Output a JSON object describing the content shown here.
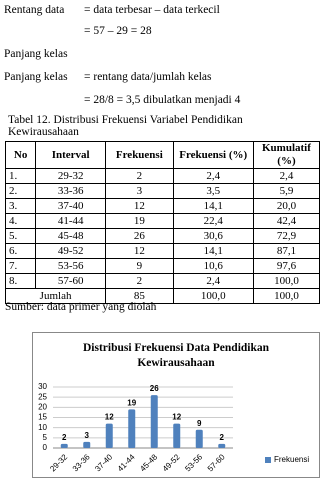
{
  "text": {
    "rentang_label": "Rentang data",
    "rentang_def": "= data terbesar – data terkecil",
    "rentang_calc": "= 57 – 29 = 28",
    "panjang_heading": "Panjang kelas",
    "panjang_label": "Panjang kelas",
    "panjang_def": "= rentang data/jumlah kelas",
    "panjang_calc": "= 28/8 = 3,5 dibulatkan menjadi 4"
  },
  "table": {
    "caption": "Tabel 12. Distribusi Frekuensi Variabel Pendidikan Kewirausahaan",
    "headers": [
      "No",
      "Interval",
      "Frekuensi",
      "Frekuensi (%)",
      "Kumulatif (%)"
    ],
    "rows": [
      [
        "1.",
        "29-32",
        "2",
        "2,4",
        "2,4"
      ],
      [
        "2.",
        "33-36",
        "3",
        "3,5",
        "5,9"
      ],
      [
        "3.",
        "37-40",
        "12",
        "14,1",
        "20,0"
      ],
      [
        "4.",
        "41-44",
        "19",
        "22,4",
        "42,4"
      ],
      [
        "5.",
        "45-48",
        "26",
        "30,6",
        "72,9"
      ],
      [
        "6.",
        "49-52",
        "12",
        "14,1",
        "87,1"
      ],
      [
        "7.",
        "53-56",
        "9",
        "10,6",
        "97,6"
      ],
      [
        "8.",
        "57-60",
        "2",
        "2,4",
        "100,0"
      ]
    ],
    "footer": [
      "Jumlah",
      "85",
      "100,0",
      "100,0"
    ]
  },
  "source": "Sumber: data primer yang diolah",
  "chart_data": {
    "type": "bar",
    "title": "Distribusi Frekuensi Data Pendidikan Kewirausahaan",
    "categories": [
      "29-32",
      "33-36",
      "37-40",
      "41-44",
      "45-48",
      "49-52",
      "53-56",
      "57-60"
    ],
    "series": [
      {
        "name": "Frekuensi",
        "color": "#4f81bd",
        "values": [
          2,
          3,
          12,
          19,
          26,
          12,
          9,
          2
        ]
      }
    ],
    "ylim": [
      0,
      30
    ],
    "yticks": [
      0,
      5,
      10,
      15,
      20,
      25,
      30
    ],
    "legend": "right"
  }
}
